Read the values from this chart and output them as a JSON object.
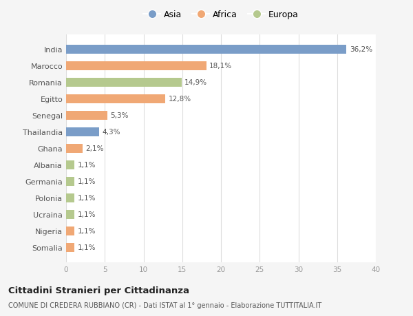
{
  "categories": [
    "India",
    "Marocco",
    "Romania",
    "Egitto",
    "Senegal",
    "Thailandia",
    "Ghana",
    "Albania",
    "Germania",
    "Polonia",
    "Ucraina",
    "Nigeria",
    "Somalia"
  ],
  "values": [
    36.2,
    18.1,
    14.9,
    12.8,
    5.3,
    4.3,
    2.1,
    1.1,
    1.1,
    1.1,
    1.1,
    1.1,
    1.1
  ],
  "labels": [
    "36,2%",
    "18,1%",
    "14,9%",
    "12,8%",
    "5,3%",
    "4,3%",
    "2,1%",
    "1,1%",
    "1,1%",
    "1,1%",
    "1,1%",
    "1,1%",
    "1,1%"
  ],
  "colors": [
    "#7a9dc8",
    "#f0a875",
    "#b5c98e",
    "#f0a875",
    "#f0a875",
    "#7a9dc8",
    "#f0a875",
    "#b5c98e",
    "#b5c98e",
    "#b5c98e",
    "#b5c98e",
    "#f0a875",
    "#f0a875"
  ],
  "legend": [
    {
      "label": "Asia",
      "color": "#7a9dc8"
    },
    {
      "label": "Africa",
      "color": "#f0a875"
    },
    {
      "label": "Europa",
      "color": "#b5c98e"
    }
  ],
  "xlim": [
    0,
    40
  ],
  "xticks": [
    0,
    5,
    10,
    15,
    20,
    25,
    30,
    35,
    40
  ],
  "title": "Cittadini Stranieri per Cittadinanza",
  "subtitle": "COMUNE DI CREDERA RUBBIANO (CR) - Dati ISTAT al 1° gennaio - Elaborazione TUTTITALIA.IT",
  "background_color": "#f5f5f5",
  "plot_bg_color": "#ffffff",
  "bar_height": 0.55
}
